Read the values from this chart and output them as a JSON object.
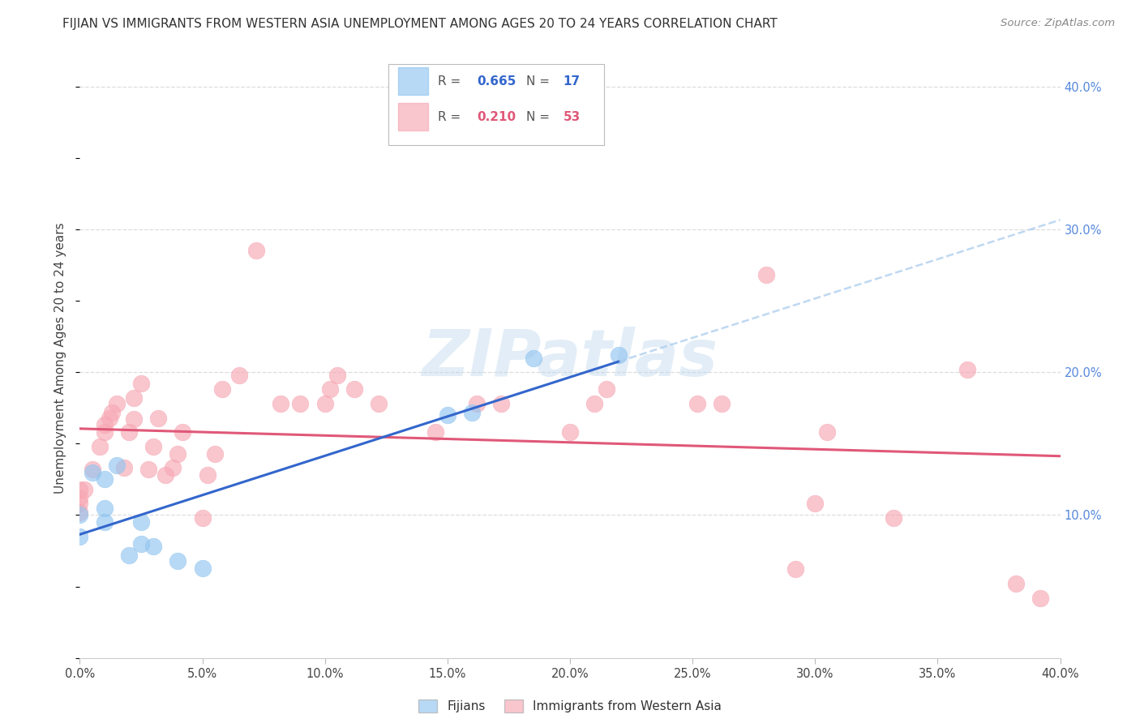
{
  "title": "FIJIAN VS IMMIGRANTS FROM WESTERN ASIA UNEMPLOYMENT AMONG AGES 20 TO 24 YEARS CORRELATION CHART",
  "source": "Source: ZipAtlas.com",
  "ylabel": "Unemployment Among Ages 20 to 24 years",
  "xlim": [
    0.0,
    0.4
  ],
  "ylim": [
    0.0,
    0.42
  ],
  "xticks": [
    0.0,
    0.05,
    0.1,
    0.15,
    0.2,
    0.25,
    0.3,
    0.35,
    0.4
  ],
  "yticks_right": [
    0.1,
    0.2,
    0.3,
    0.4
  ],
  "fijians_R": 0.665,
  "fijians_N": 17,
  "western_asia_R": 0.21,
  "western_asia_N": 53,
  "fijian_color": "#92C5F0",
  "western_asia_color": "#F7A8B4",
  "fijian_line_color": "#3366CC",
  "western_asia_line_color": "#E05878",
  "fijian_scatter": [
    [
      0.0,
      0.085
    ],
    [
      0.0,
      0.1
    ],
    [
      0.005,
      0.13
    ],
    [
      0.01,
      0.125
    ],
    [
      0.01,
      0.095
    ],
    [
      0.01,
      0.105
    ],
    [
      0.015,
      0.135
    ],
    [
      0.02,
      0.072
    ],
    [
      0.025,
      0.08
    ],
    [
      0.025,
      0.095
    ],
    [
      0.03,
      0.078
    ],
    [
      0.04,
      0.068
    ],
    [
      0.05,
      0.063
    ],
    [
      0.15,
      0.17
    ],
    [
      0.16,
      0.172
    ],
    [
      0.185,
      0.21
    ],
    [
      0.22,
      0.212
    ]
  ],
  "western_asia_scatter": [
    [
      0.0,
      0.112
    ],
    [
      0.0,
      0.118
    ],
    [
      0.0,
      0.108
    ],
    [
      0.0,
      0.102
    ],
    [
      0.002,
      0.118
    ],
    [
      0.005,
      0.132
    ],
    [
      0.008,
      0.148
    ],
    [
      0.01,
      0.158
    ],
    [
      0.01,
      0.163
    ],
    [
      0.012,
      0.168
    ],
    [
      0.013,
      0.172
    ],
    [
      0.015,
      0.178
    ],
    [
      0.018,
      0.133
    ],
    [
      0.02,
      0.158
    ],
    [
      0.022,
      0.167
    ],
    [
      0.022,
      0.182
    ],
    [
      0.025,
      0.192
    ],
    [
      0.028,
      0.132
    ],
    [
      0.03,
      0.148
    ],
    [
      0.032,
      0.168
    ],
    [
      0.035,
      0.128
    ],
    [
      0.038,
      0.133
    ],
    [
      0.04,
      0.143
    ],
    [
      0.042,
      0.158
    ],
    [
      0.05,
      0.098
    ],
    [
      0.052,
      0.128
    ],
    [
      0.055,
      0.143
    ],
    [
      0.058,
      0.188
    ],
    [
      0.065,
      0.198
    ],
    [
      0.072,
      0.285
    ],
    [
      0.082,
      0.178
    ],
    [
      0.09,
      0.178
    ],
    [
      0.1,
      0.178
    ],
    [
      0.102,
      0.188
    ],
    [
      0.105,
      0.198
    ],
    [
      0.112,
      0.188
    ],
    [
      0.122,
      0.178
    ],
    [
      0.145,
      0.158
    ],
    [
      0.162,
      0.178
    ],
    [
      0.172,
      0.178
    ],
    [
      0.2,
      0.158
    ],
    [
      0.21,
      0.178
    ],
    [
      0.215,
      0.188
    ],
    [
      0.252,
      0.178
    ],
    [
      0.262,
      0.178
    ],
    [
      0.28,
      0.268
    ],
    [
      0.292,
      0.062
    ],
    [
      0.3,
      0.108
    ],
    [
      0.305,
      0.158
    ],
    [
      0.332,
      0.098
    ],
    [
      0.362,
      0.202
    ],
    [
      0.382,
      0.052
    ],
    [
      0.392,
      0.042
    ]
  ],
  "watermark_text": "ZIPatlas",
  "background_color": "#FFFFFF",
  "grid_color": "#DDDDDD",
  "legend_fijian_label": "Fijians",
  "legend_wa_label": "Immigrants from Western Asia"
}
